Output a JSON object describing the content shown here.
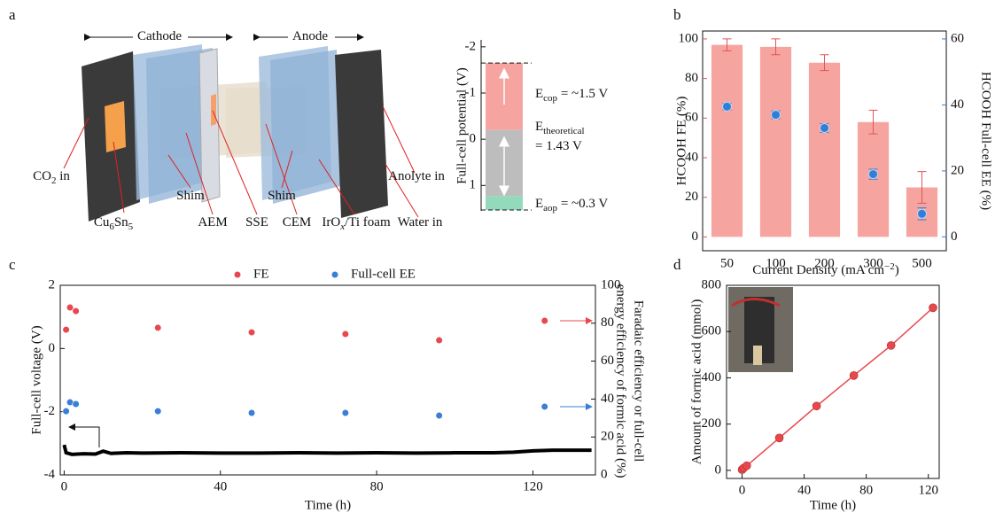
{
  "diagram": {
    "panel": "a",
    "labels": [
      [
        "Cathode"
      ],
      [
        "Anode"
      ],
      [
        "CO",
        "2",
        " in"
      ],
      [
        "Shim"
      ],
      [
        "Cu",
        "6",
        "Sn",
        "5"
      ],
      [
        "AEM"
      ],
      [
        "SSE"
      ],
      [
        "CEM"
      ],
      [
        "Shim"
      ],
      [
        "IrO",
        "x",
        "/Ti foam"
      ],
      [
        "Anolyte in"
      ],
      [
        "Water in"
      ]
    ]
  },
  "chart_data": [
    {
      "type": "range-bar",
      "ylabel": "Full-cell potential (V)",
      "ylim": [
        -2.15,
        1.55
      ],
      "reversed": true,
      "yticks": [
        -2,
        -1,
        0,
        1
      ],
      "segments": [
        {
          "from": -1.65,
          "to": -0.2,
          "color": "#f6a4a0"
        },
        {
          "from": -0.2,
          "to": 1.23,
          "color": "#bdbdbd"
        },
        {
          "from": 1.23,
          "to": 1.53,
          "color": "#93d9bc"
        }
      ],
      "annotations": [
        [
          "E",
          "cop",
          " = ~1.5 V"
        ],
        [
          "E",
          "theoretical"
        ],
        [
          "= 1.43 V"
        ],
        [
          "E",
          "aop",
          " = ~0.3 V"
        ]
      ]
    },
    {
      "type": "bar",
      "panel": "b",
      "categories": [
        50,
        100,
        200,
        300,
        500
      ],
      "xlabel": [
        "Current Density (mA cm",
        "−2",
        ")"
      ],
      "ylabel": "HCOOH FE (%)",
      "y2label": "HCOOH Full-cell EE (%)",
      "ylim": [
        -7,
        104
      ],
      "yticks": [
        0,
        20,
        40,
        60,
        80,
        100
      ],
      "y2lim": [
        -4.2,
        62.4
      ],
      "y2ticks": [
        0,
        20,
        40,
        60
      ],
      "series": [
        {
          "color": "#f6a4a0",
          "values": [
            97,
            96,
            88,
            58,
            25
          ],
          "errors": [
            3,
            4,
            4,
            6,
            8
          ]
        },
        {
          "color": "#2f7ed8",
          "axis": "y2",
          "values": [
            39.5,
            37,
            33,
            19,
            7
          ],
          "errors": [
            1,
            1.2,
            1.3,
            1.5,
            1.8
          ]
        }
      ]
    },
    {
      "type": "line",
      "panel": "c",
      "xlabel": "Time (h)",
      "ylabel": "Full-cell voltage (V)",
      "y2label": [
        "Faradaic efficiency or full-cell",
        "energy efficiency of formic acid (%)"
      ],
      "xlim": [
        -1,
        136
      ],
      "xticks": [
        0,
        40,
        80,
        120
      ],
      "ylim": [
        -4,
        2
      ],
      "yticks": [
        -4,
        -2,
        0,
        2
      ],
      "y2lim": [
        0,
        100
      ],
      "y2ticks": [
        0,
        20,
        40,
        60,
        80,
        100
      ],
      "series": [
        {
          "color": "#000000",
          "x": [
            0,
            0.5,
            2,
            5,
            8,
            10,
            12,
            16,
            20,
            30,
            40,
            50,
            60,
            70,
            80,
            90,
            100,
            110,
            115,
            120,
            125,
            130,
            135
          ],
          "values": [
            -3.05,
            -3.3,
            -3.35,
            -3.33,
            -3.34,
            -3.25,
            -3.32,
            -3.3,
            -3.31,
            -3.3,
            -3.31,
            -3.31,
            -3.3,
            -3.31,
            -3.3,
            -3.31,
            -3.3,
            -3.3,
            -3.28,
            -3.24,
            -3.22,
            -3.22,
            -3.22
          ]
        },
        {
          "name": "FE",
          "axis": "y2",
          "style": "scatter",
          "color": "#e8484d",
          "x": [
            0.5,
            1.5,
            3,
            24,
            48,
            72,
            96,
            123
          ],
          "values": [
            76.6,
            88.3,
            86.4,
            77.6,
            75.2,
            74.3,
            71,
            81.3
          ]
        },
        {
          "name": "Full-cell EE",
          "axis": "y2",
          "style": "scatter",
          "color": "#3a7fd6",
          "x": [
            0.5,
            1.5,
            3,
            24,
            48,
            72,
            96,
            123
          ],
          "values": [
            33.6,
            38.3,
            37.4,
            33.6,
            32.7,
            32.7,
            31.3,
            36
          ]
        }
      ]
    },
    {
      "type": "line",
      "panel": "d",
      "xlabel": "Time (h)",
      "ylabel": "Amount of formic acid (mmol)",
      "xlim": [
        -10,
        127
      ],
      "xticks": [
        0,
        40,
        80,
        120
      ],
      "ylim": [
        -35,
        800
      ],
      "yticks": [
        0,
        200,
        400,
        600,
        800
      ],
      "series": [
        {
          "color": "#e8484d",
          "markers": true,
          "x": [
            0,
            1,
            3,
            24,
            48,
            72,
            96,
            123
          ],
          "values": [
            3,
            10,
            20,
            140,
            278,
            410,
            540,
            703
          ]
        }
      ]
    }
  ]
}
